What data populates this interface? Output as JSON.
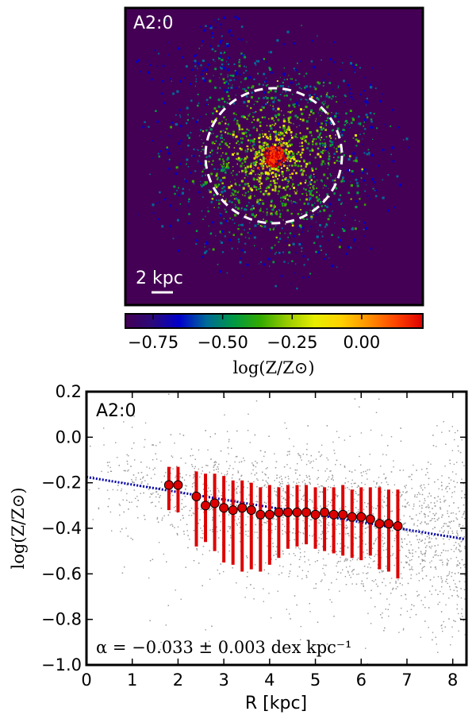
{
  "chart_data": [
    {
      "type": "heatmap",
      "panel_label": "A2:0",
      "scale_bar_label": "2 kpc",
      "colorbar": {
        "label": "log(Z/Z⊙)",
        "range": [
          -0.85,
          0.22
        ],
        "ticks": [
          -0.75,
          -0.5,
          -0.25,
          0.0
        ],
        "tick_labels": [
          "−0.75",
          "−0.50",
          "−0.25",
          "0.00"
        ],
        "colormap": [
          "#440054",
          "#2a0a7a",
          "#0000cc",
          "#006a99",
          "#009944",
          "#33aa00",
          "#99cc00",
          "#e6ee00",
          "#ffd000",
          "#ff9000",
          "#ff4400",
          "#dd0000"
        ]
      },
      "background_color": "#440054"
    },
    {
      "type": "scatter",
      "panel_label": "A2:0",
      "xlabel": "R [kpc]",
      "ylabel": "log(Z/Z⊙)",
      "xlim": [
        0,
        8.3
      ],
      "ylim": [
        -1.0,
        0.2
      ],
      "xticks": [
        0,
        1,
        2,
        3,
        4,
        5,
        6,
        7,
        8
      ],
      "xtick_labels": [
        "0",
        "1",
        "2",
        "3",
        "4",
        "5",
        "6",
        "7",
        "8"
      ],
      "yticks": [
        -1.0,
        -0.8,
        -0.6,
        -0.4,
        -0.2,
        0.0,
        0.2
      ],
      "ytick_labels": [
        "−1.0",
        "−0.8",
        "−0.6",
        "−0.4",
        "−0.2",
        "0.0",
        "0.2"
      ],
      "fit": {
        "intercept": -0.175,
        "slope": -0.033,
        "color": "#0000aa"
      },
      "annotation": "α = −0.033 ± 0.003 dex kpc⁻¹",
      "binned": {
        "color": "#dd0000",
        "points": [
          {
            "x": 1.8,
            "y": -0.21,
            "lo": -0.32,
            "hi": -0.13
          },
          {
            "x": 2.0,
            "y": -0.21,
            "lo": -0.33,
            "hi": -0.13
          },
          {
            "x": 2.4,
            "y": -0.26,
            "lo": -0.48,
            "hi": -0.15
          },
          {
            "x": 2.6,
            "y": -0.3,
            "lo": -0.46,
            "hi": -0.16
          },
          {
            "x": 2.8,
            "y": -0.29,
            "lo": -0.5,
            "hi": -0.16
          },
          {
            "x": 3.0,
            "y": -0.31,
            "lo": -0.55,
            "hi": -0.17
          },
          {
            "x": 3.2,
            "y": -0.32,
            "lo": -0.56,
            "hi": -0.19
          },
          {
            "x": 3.4,
            "y": -0.31,
            "lo": -0.59,
            "hi": -0.19
          },
          {
            "x": 3.6,
            "y": -0.32,
            "lo": -0.58,
            "hi": -0.2
          },
          {
            "x": 3.8,
            "y": -0.34,
            "lo": -0.59,
            "hi": -0.22
          },
          {
            "x": 4.0,
            "y": -0.34,
            "lo": -0.56,
            "hi": -0.21
          },
          {
            "x": 4.2,
            "y": -0.33,
            "lo": -0.53,
            "hi": -0.22
          },
          {
            "x": 4.4,
            "y": -0.33,
            "lo": -0.49,
            "hi": -0.21
          },
          {
            "x": 4.6,
            "y": -0.33,
            "lo": -0.48,
            "hi": -0.21
          },
          {
            "x": 4.8,
            "y": -0.33,
            "lo": -0.47,
            "hi": -0.21
          },
          {
            "x": 5.0,
            "y": -0.34,
            "lo": -0.49,
            "hi": -0.22
          },
          {
            "x": 5.2,
            "y": -0.33,
            "lo": -0.5,
            "hi": -0.22
          },
          {
            "x": 5.4,
            "y": -0.34,
            "lo": -0.51,
            "hi": -0.22
          },
          {
            "x": 5.6,
            "y": -0.34,
            "lo": -0.52,
            "hi": -0.21
          },
          {
            "x": 5.8,
            "y": -0.35,
            "lo": -0.53,
            "hi": -0.23
          },
          {
            "x": 6.0,
            "y": -0.35,
            "lo": -0.54,
            "hi": -0.22
          },
          {
            "x": 6.2,
            "y": -0.36,
            "lo": -0.52,
            "hi": -0.22
          },
          {
            "x": 6.4,
            "y": -0.38,
            "lo": -0.58,
            "hi": -0.22
          },
          {
            "x": 6.6,
            "y": -0.38,
            "lo": -0.59,
            "hi": -0.23
          },
          {
            "x": 6.8,
            "y": -0.39,
            "lo": -0.62,
            "hi": -0.23
          }
        ]
      }
    }
  ]
}
